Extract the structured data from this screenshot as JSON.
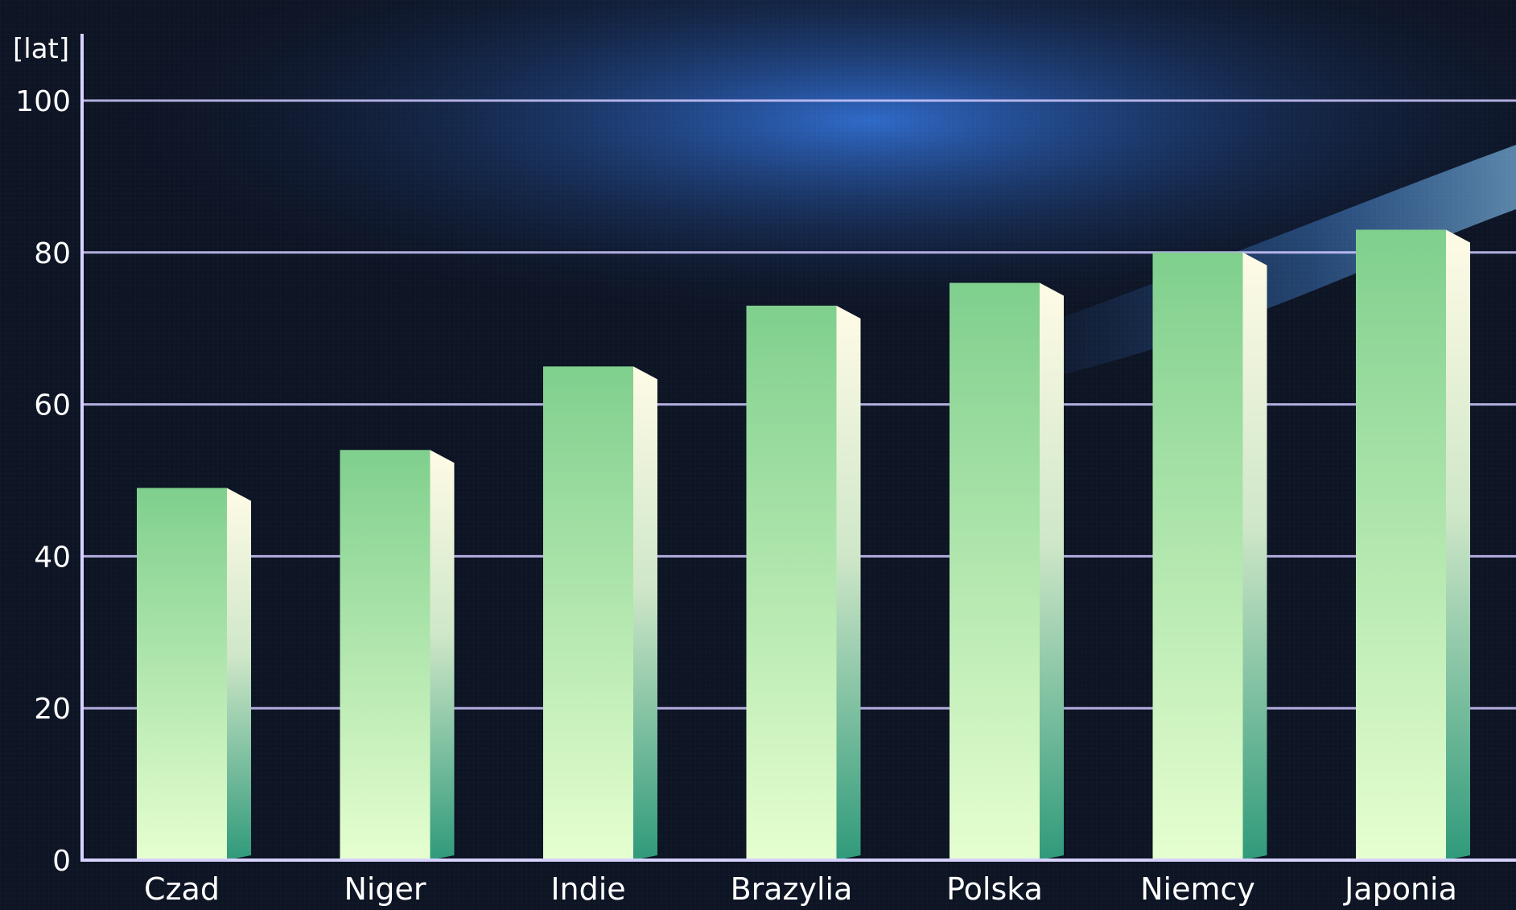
{
  "chart_data": {
    "type": "bar",
    "ylabel": "[lat]",
    "xlabel": "",
    "categories": [
      "Czad",
      "Niger",
      "Indie",
      "Brazylia",
      "Polska",
      "Niemcy",
      "Japonia"
    ],
    "values": [
      49,
      54,
      65,
      73,
      76,
      80,
      83
    ],
    "ylim": [
      0,
      100
    ],
    "yticks": [
      0,
      20,
      40,
      60,
      80,
      100
    ],
    "grid": true,
    "legend": "none",
    "colors": {
      "background": "#0d1424",
      "glow": "#2f6fd6",
      "grid": "#cfc8ff",
      "axis": "#d8d2ff",
      "text": "#ffffff",
      "bar_top": "#7fcf8d",
      "bar_bottom": "#e6ffd0",
      "bar_side_top": "#fffbe6",
      "bar_side_bottom": "#2f9a7a"
    }
  }
}
